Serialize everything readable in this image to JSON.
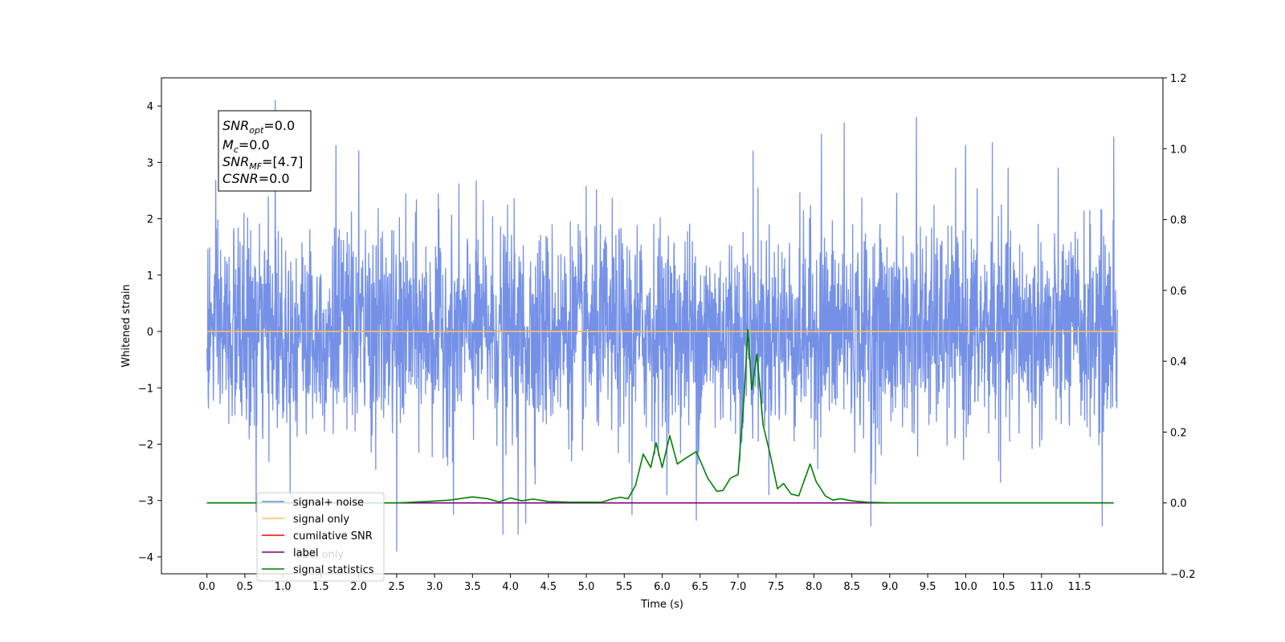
{
  "chart_data": {
    "type": "line",
    "xlabel": "Time (s)",
    "ylabel": "Whitened strain",
    "xlim": [
      -0.6,
      12.6
    ],
    "ylim": [
      -4.3,
      4.5
    ],
    "ylim_right": [
      -0.2,
      1.2
    ],
    "x_ticks": [
      "0.0",
      "0.5",
      "1.0",
      "1.5",
      "2.0",
      "2.5",
      "3.0",
      "3.5",
      "4.0",
      "4.5",
      "5.0",
      "5.5",
      "6.0",
      "6.5",
      "7.0",
      "7.5",
      "8.0",
      "8.5",
      "9.0",
      "9.5",
      "10.0",
      "10.5",
      "11.0",
      "11.5"
    ],
    "y_ticks_left": [
      "4",
      "3",
      "2",
      "1",
      "0",
      "−1",
      "−2",
      "−3",
      "−4"
    ],
    "y_ticks_right": [
      "1.2",
      "1.0",
      "0.8",
      "0.6",
      "0.4",
      "0.2",
      "0.0",
      "−0.2"
    ],
    "noise": {
      "x_range": [
        0.0,
        12.0
      ],
      "sample_count": 3000,
      "sigma": 0.9,
      "spikes": [
        {
          "x": 0.9,
          "y": 4.1
        },
        {
          "x": 1.7,
          "y": 3.3
        },
        {
          "x": 2.0,
          "y": 3.2
        },
        {
          "x": 2.5,
          "y": -3.9
        },
        {
          "x": 3.9,
          "y": -3.6
        },
        {
          "x": 4.1,
          "y": -3.6
        },
        {
          "x": 4.2,
          "y": -3.4
        },
        {
          "x": 8.1,
          "y": 3.5
        },
        {
          "x": 8.4,
          "y": 3.7
        },
        {
          "x": 8.75,
          "y": -3.45
        },
        {
          "x": 9.35,
          "y": 3.8
        },
        {
          "x": 11.8,
          "y": -3.45
        },
        {
          "x": 11.95,
          "y": 3.45
        },
        {
          "x": 0.65,
          "y": -3.2
        },
        {
          "x": 6.45,
          "y": -3.35
        },
        {
          "x": 10.0,
          "y": 3.3
        },
        {
          "x": 10.35,
          "y": 3.35
        },
        {
          "x": 7.2,
          "y": 3.2
        },
        {
          "x": 5.6,
          "y": -3.25
        },
        {
          "x": 3.25,
          "y": -3.25
        }
      ]
    },
    "series": [
      {
        "name": "signal+ noise",
        "color": "#6e8be6",
        "axis": "left",
        "kind": "noise"
      },
      {
        "name": "signal only",
        "color": "#ffbf60",
        "axis": "left",
        "x": [
          0.0,
          12.0
        ],
        "y": [
          0.0,
          0.0
        ]
      },
      {
        "name": "cumilative SNR",
        "color": "#ff0000",
        "axis": "left",
        "x": [],
        "y": []
      },
      {
        "name": "label",
        "color": "#800080",
        "axis": "right",
        "x": [
          0.0,
          11.95
        ],
        "y": [
          0.0,
          0.0
        ]
      },
      {
        "name": "signal statistics",
        "color": "#008000",
        "axis": "right",
        "x": [
          0.0,
          2.5,
          2.9,
          3.2,
          3.5,
          3.7,
          3.85,
          4.0,
          4.15,
          4.3,
          4.5,
          4.8,
          5.2,
          5.35,
          5.45,
          5.55,
          5.65,
          5.75,
          5.85,
          5.92,
          6.0,
          6.1,
          6.2,
          6.3,
          6.45,
          6.6,
          6.72,
          6.8,
          6.9,
          7.0,
          7.08,
          7.13,
          7.18,
          7.25,
          7.33,
          7.42,
          7.52,
          7.6,
          7.7,
          7.8,
          7.88,
          7.95,
          8.03,
          8.15,
          8.25,
          8.35,
          8.5,
          8.7,
          9.0,
          10.0,
          11.95
        ],
        "y": [
          0.0,
          0.0,
          0.004,
          0.008,
          0.017,
          0.012,
          0.003,
          0.014,
          0.006,
          0.011,
          0.004,
          0.002,
          0.002,
          0.012,
          0.016,
          0.012,
          0.05,
          0.138,
          0.1,
          0.17,
          0.1,
          0.19,
          0.11,
          0.125,
          0.145,
          0.07,
          0.033,
          0.035,
          0.07,
          0.08,
          0.3,
          0.49,
          0.32,
          0.42,
          0.22,
          0.14,
          0.04,
          0.055,
          0.025,
          0.02,
          0.068,
          0.11,
          0.06,
          0.02,
          0.008,
          0.012,
          0.006,
          0.002,
          0.0,
          0.0,
          0.0
        ]
      }
    ],
    "annotation": {
      "lines": [
        {
          "main": "SNR",
          "sub": "opt",
          "rest": "=0.0"
        },
        {
          "main": "M",
          "sub": "c",
          "rest": "=0.0"
        },
        {
          "main": "SNR",
          "sub": "MF",
          "rest": "=[4.7]"
        },
        {
          "main": "CSNR",
          "sub": "",
          "rest": "=0.0"
        }
      ]
    },
    "legend": {
      "placement": "lower-left",
      "hidden_text": "label only"
    }
  }
}
